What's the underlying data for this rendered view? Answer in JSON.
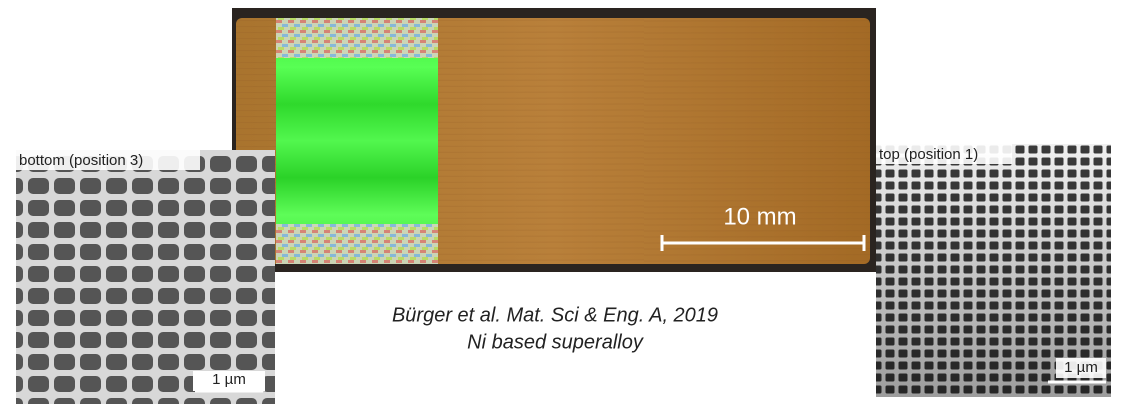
{
  "main_image": {
    "scale_bar": "10 mm"
  },
  "left_image": {
    "label": "bottom (position 3)",
    "scale_bar": "1 µm"
  },
  "right_image": {
    "label": "top (position 1)",
    "scale_bar": "1 µm"
  },
  "caption": {
    "line1": "Bürger et al. Mat. Sci & Eng. A, 2019",
    "line2": "Ni based superalloy"
  }
}
